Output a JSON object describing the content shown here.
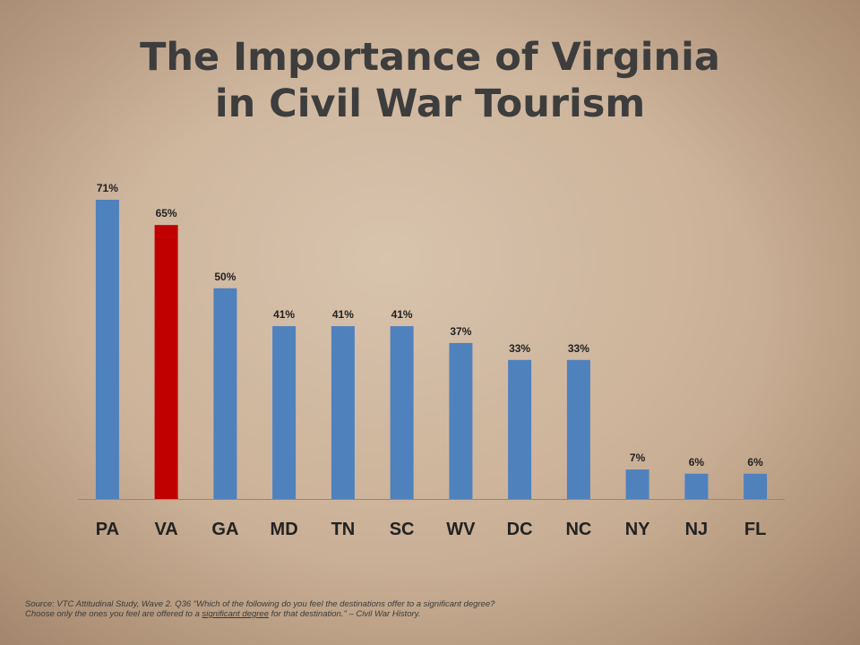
{
  "slide": {
    "title_line1": "The Importance of Virginia",
    "title_line2": "in Civil War Tourism"
  },
  "footnote": {
    "line1": "Source:  VTC Attitudinal Study, Wave 2.  Q36 \"Which of the following do you feel the destinations offer to a significant degree?",
    "line2_pre": "Choose only the ones you feel are offered to a ",
    "line2_underlined": "significant degree",
    "line2_post": " for that destination.\" – Civil War History."
  },
  "colors": {
    "bar_default": "#4f81bd",
    "bar_highlight": "#c00000",
    "label_text": "#222222",
    "axis_line": "#8a8a8a"
  },
  "chart_data": {
    "type": "bar",
    "title": "The Importance of Virginia in Civil War Tourism",
    "categories": [
      "PA",
      "VA",
      "GA",
      "MD",
      "TN",
      "SC",
      "WV",
      "DC",
      "NC",
      "NY",
      "NJ",
      "FL"
    ],
    "values": [
      71,
      65,
      50,
      41,
      41,
      41,
      37,
      33,
      33,
      7,
      6,
      6
    ],
    "data_labels": [
      "71%",
      "65%",
      "50%",
      "41%",
      "41%",
      "41%",
      "37%",
      "33%",
      "33%",
      "7%",
      "6%",
      "6%"
    ],
    "highlight_category": "VA",
    "ylim": [
      0,
      71
    ],
    "grid": false,
    "legend": "none"
  }
}
